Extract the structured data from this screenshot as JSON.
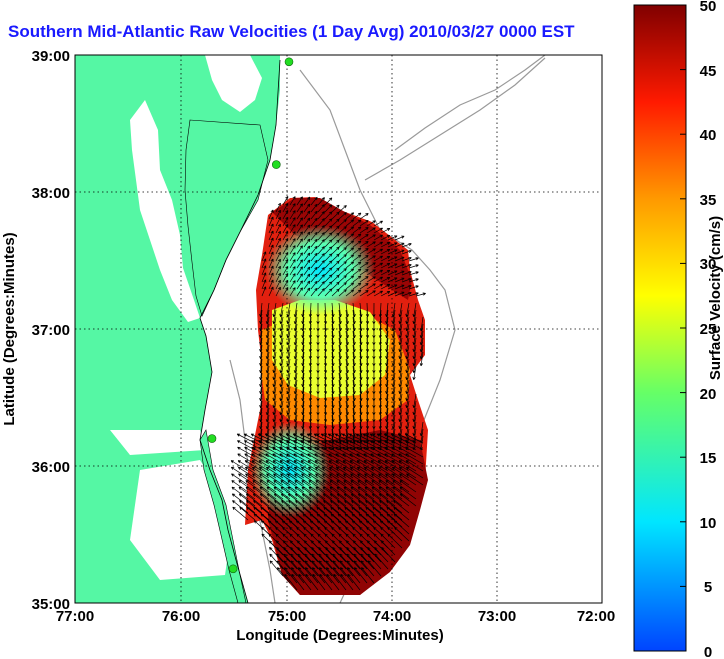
{
  "title": "Southern Mid-Atlantic Raw Velocities (1 Day Avg) 2010/03/27 0000 EST",
  "xlabel": "Longitude (Degrees:Minutes)",
  "ylabel": "Latitude (Degrees:Minutes)",
  "x_ticks": [
    "77:00",
    "76:00",
    "75:00",
    "74:00",
    "73:00",
    "72:00"
  ],
  "y_ticks": [
    "39:00",
    "38:00",
    "37:00",
    "36:00",
    "35:00"
  ],
  "colorbar": {
    "label": "Surface Velocity (cm/s)",
    "ticks": [
      "0",
      "5",
      "10",
      "15",
      "20",
      "25",
      "30",
      "35",
      "40",
      "45",
      "50"
    ],
    "range": [
      0,
      50
    ]
  },
  "colors": {
    "land": "#55f7a4",
    "water": "#ffffff",
    "title": "#1a1aff",
    "bathymetry": "#9a9a9a",
    "station": "#22dd22"
  },
  "extent": {
    "lon": [
      -77,
      -72
    ],
    "lat": [
      35,
      39
    ]
  },
  "station_markers": [
    {
      "lon": -74.97,
      "lat": 38.95
    },
    {
      "lon": -75.09,
      "lat": 38.2
    },
    {
      "lon": -75.7,
      "lat": 36.2
    },
    {
      "lon": -75.5,
      "lat": 35.25
    }
  ]
}
